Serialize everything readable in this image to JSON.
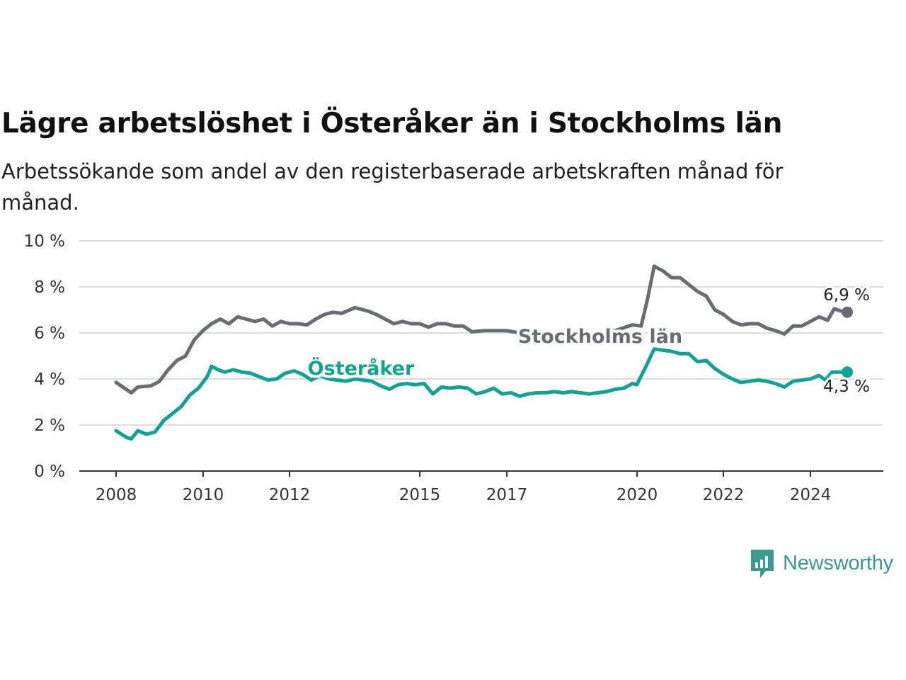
{
  "header": {
    "title": "Lägre arbetslöshet i Österåker än i Stockholms län",
    "subtitle": "Arbetssökande som andel av den registerbaserade arbetskraften månad för månad."
  },
  "brand": {
    "name": "Newsworthy",
    "icon": "newsworthy-logo-icon",
    "color": "#3a9a90"
  },
  "chart_data": {
    "type": "line",
    "title": "Lägre arbetslöshet i Österåker än i Stockholms län",
    "subtitle": "Arbetssökande som andel av den registerbaserade arbetskraften månad för månad.",
    "ylim": [
      0,
      10
    ],
    "xlim": [
      2008,
      2025
    ],
    "yticks": [
      0,
      2,
      4,
      6,
      8,
      10
    ],
    "ytick_labels": [
      "0 %",
      "2 %",
      "4 %",
      "6 %",
      "8 %",
      "10 %"
    ],
    "xticks": [
      2008,
      2010,
      2012,
      2015,
      2017,
      2020,
      2022,
      2024
    ],
    "xtick_labels": [
      "2008",
      "2010",
      "2012",
      "2015",
      "2017",
      "2020",
      "2022",
      "2024"
    ],
    "grid": true,
    "series": [
      {
        "name": "Stockholms län",
        "color": "#6b6b73",
        "end_label": "6,9 %",
        "points": [
          [
            2008.0,
            3.85
          ],
          [
            2008.35,
            3.4
          ],
          [
            2008.5,
            3.65
          ],
          [
            2008.8,
            3.7
          ],
          [
            2009.0,
            3.9
          ],
          [
            2009.2,
            4.4
          ],
          [
            2009.4,
            4.8
          ],
          [
            2009.6,
            5.0
          ],
          [
            2009.8,
            5.7
          ],
          [
            2010.0,
            6.1
          ],
          [
            2010.2,
            6.4
          ],
          [
            2010.4,
            6.6
          ],
          [
            2010.6,
            6.4
          ],
          [
            2010.8,
            6.7
          ],
          [
            2011.0,
            6.6
          ],
          [
            2011.2,
            6.5
          ],
          [
            2011.4,
            6.6
          ],
          [
            2011.6,
            6.3
          ],
          [
            2011.8,
            6.5
          ],
          [
            2012.0,
            6.4
          ],
          [
            2012.2,
            6.4
          ],
          [
            2012.4,
            6.35
          ],
          [
            2012.6,
            6.6
          ],
          [
            2012.8,
            6.8
          ],
          [
            2013.0,
            6.9
          ],
          [
            2013.2,
            6.85
          ],
          [
            2013.5,
            7.1
          ],
          [
            2013.8,
            6.95
          ],
          [
            2014.0,
            6.8
          ],
          [
            2014.2,
            6.6
          ],
          [
            2014.4,
            6.4
          ],
          [
            2014.6,
            6.5
          ],
          [
            2014.8,
            6.4
          ],
          [
            2015.0,
            6.4
          ],
          [
            2015.2,
            6.25
          ],
          [
            2015.4,
            6.4
          ],
          [
            2015.6,
            6.4
          ],
          [
            2015.8,
            6.3
          ],
          [
            2016.0,
            6.3
          ],
          [
            2016.2,
            6.05
          ],
          [
            2016.5,
            6.1
          ],
          [
            2016.8,
            6.1
          ],
          [
            2017.0,
            6.1
          ],
          [
            2017.3,
            6.0
          ],
          [
            2017.5,
            5.95
          ],
          [
            2018.0,
            5.8
          ],
          [
            2018.5,
            5.8
          ],
          [
            2019.0,
            5.9
          ],
          [
            2019.5,
            6.1
          ],
          [
            2019.9,
            6.35
          ],
          [
            2020.1,
            6.3
          ],
          [
            2020.25,
            7.5
          ],
          [
            2020.4,
            8.9
          ],
          [
            2020.6,
            8.7
          ],
          [
            2020.8,
            8.4
          ],
          [
            2021.0,
            8.4
          ],
          [
            2021.2,
            8.1
          ],
          [
            2021.4,
            7.8
          ],
          [
            2021.6,
            7.6
          ],
          [
            2021.8,
            7.0
          ],
          [
            2022.0,
            6.8
          ],
          [
            2022.2,
            6.5
          ],
          [
            2022.4,
            6.35
          ],
          [
            2022.6,
            6.4
          ],
          [
            2022.8,
            6.4
          ],
          [
            2023.0,
            6.2
          ],
          [
            2023.2,
            6.1
          ],
          [
            2023.4,
            5.95
          ],
          [
            2023.6,
            6.3
          ],
          [
            2023.8,
            6.3
          ],
          [
            2024.0,
            6.5
          ],
          [
            2024.2,
            6.7
          ],
          [
            2024.4,
            6.55
          ],
          [
            2024.55,
            7.05
          ],
          [
            2024.7,
            6.95
          ],
          [
            2024.85,
            6.9
          ]
        ]
      },
      {
        "name": "Österåker",
        "color": "#10a393",
        "end_label": "4,3 %",
        "points": [
          [
            2008.0,
            1.75
          ],
          [
            2008.25,
            1.45
          ],
          [
            2008.35,
            1.4
          ],
          [
            2008.5,
            1.75
          ],
          [
            2008.7,
            1.6
          ],
          [
            2008.9,
            1.7
          ],
          [
            2009.1,
            2.2
          ],
          [
            2009.3,
            2.5
          ],
          [
            2009.5,
            2.8
          ],
          [
            2009.7,
            3.3
          ],
          [
            2009.9,
            3.6
          ],
          [
            2010.1,
            4.1
          ],
          [
            2010.2,
            4.55
          ],
          [
            2010.35,
            4.4
          ],
          [
            2010.5,
            4.3
          ],
          [
            2010.7,
            4.4
          ],
          [
            2010.9,
            4.3
          ],
          [
            2011.1,
            4.25
          ],
          [
            2011.3,
            4.1
          ],
          [
            2011.5,
            3.95
          ],
          [
            2011.7,
            4.0
          ],
          [
            2011.9,
            4.25
          ],
          [
            2012.1,
            4.35
          ],
          [
            2012.3,
            4.2
          ],
          [
            2012.5,
            3.95
          ],
          [
            2012.7,
            4.15
          ],
          [
            2012.9,
            4.0
          ],
          [
            2013.1,
            3.95
          ],
          [
            2013.3,
            3.9
          ],
          [
            2013.5,
            4.0
          ],
          [
            2013.7,
            3.95
          ],
          [
            2013.9,
            3.9
          ],
          [
            2014.1,
            3.7
          ],
          [
            2014.3,
            3.55
          ],
          [
            2014.5,
            3.75
          ],
          [
            2014.7,
            3.8
          ],
          [
            2014.9,
            3.75
          ],
          [
            2015.1,
            3.8
          ],
          [
            2015.3,
            3.35
          ],
          [
            2015.5,
            3.65
          ],
          [
            2015.7,
            3.6
          ],
          [
            2015.9,
            3.65
          ],
          [
            2016.1,
            3.6
          ],
          [
            2016.3,
            3.35
          ],
          [
            2016.5,
            3.45
          ],
          [
            2016.7,
            3.6
          ],
          [
            2016.9,
            3.35
          ],
          [
            2017.1,
            3.4
          ],
          [
            2017.3,
            3.25
          ],
          [
            2017.5,
            3.35
          ],
          [
            2017.7,
            3.4
          ],
          [
            2017.9,
            3.4
          ],
          [
            2018.1,
            3.45
          ],
          [
            2018.3,
            3.4
          ],
          [
            2018.5,
            3.45
          ],
          [
            2018.7,
            3.4
          ],
          [
            2018.9,
            3.35
          ],
          [
            2019.1,
            3.4
          ],
          [
            2019.3,
            3.45
          ],
          [
            2019.5,
            3.55
          ],
          [
            2019.7,
            3.6
          ],
          [
            2019.9,
            3.8
          ],
          [
            2020.0,
            3.75
          ],
          [
            2020.2,
            4.5
          ],
          [
            2020.4,
            5.3
          ],
          [
            2020.6,
            5.25
          ],
          [
            2020.8,
            5.2
          ],
          [
            2021.0,
            5.1
          ],
          [
            2021.2,
            5.1
          ],
          [
            2021.4,
            4.75
          ],
          [
            2021.6,
            4.8
          ],
          [
            2021.8,
            4.45
          ],
          [
            2022.0,
            4.2
          ],
          [
            2022.2,
            4.0
          ],
          [
            2022.4,
            3.85
          ],
          [
            2022.6,
            3.9
          ],
          [
            2022.8,
            3.95
          ],
          [
            2023.0,
            3.9
          ],
          [
            2023.2,
            3.8
          ],
          [
            2023.4,
            3.65
          ],
          [
            2023.6,
            3.9
          ],
          [
            2023.8,
            3.95
          ],
          [
            2024.0,
            4.0
          ],
          [
            2024.2,
            4.15
          ],
          [
            2024.35,
            3.95
          ],
          [
            2024.5,
            4.3
          ],
          [
            2024.7,
            4.3
          ],
          [
            2024.85,
            4.3
          ]
        ]
      }
    ]
  }
}
